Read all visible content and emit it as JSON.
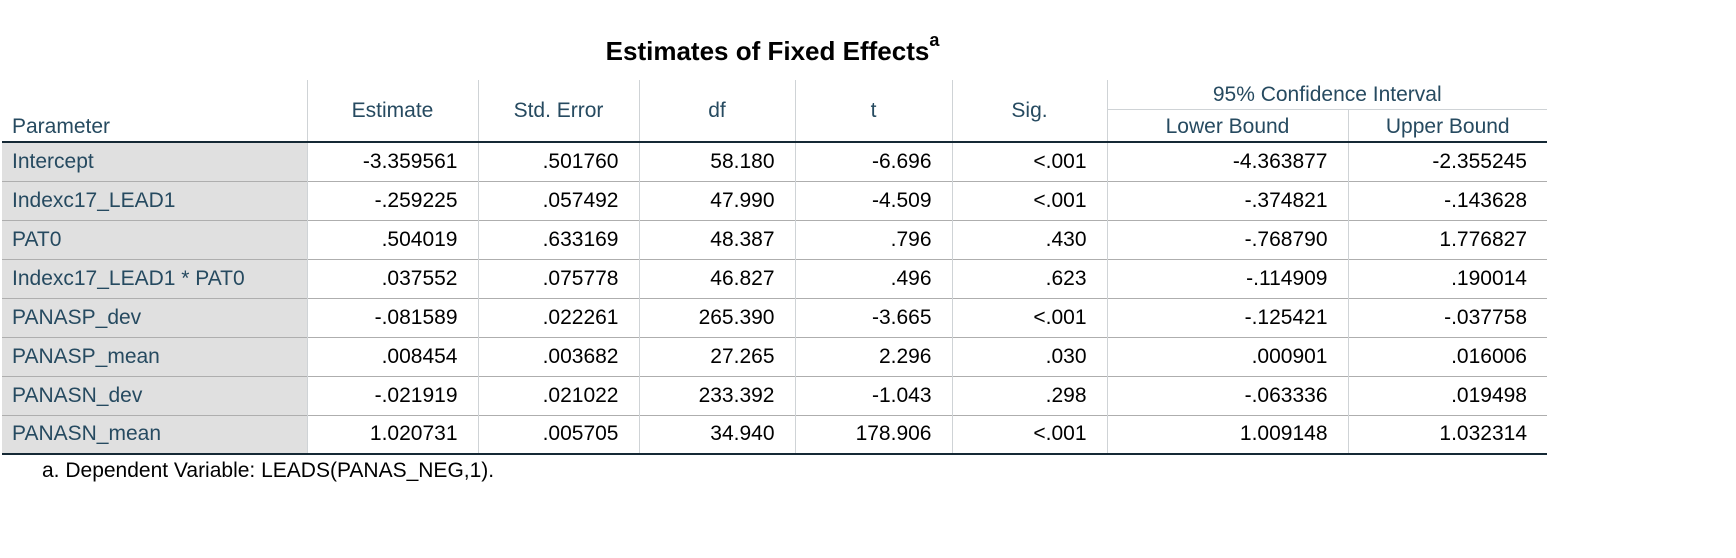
{
  "table": {
    "title": "Estimates of Fixed Effects",
    "title_superscript": "a",
    "headers": {
      "parameter": "Parameter",
      "estimate": "Estimate",
      "std_error": "Std. Error",
      "df": "df",
      "t": "t",
      "sig": "Sig.",
      "ci": "95% Confidence Interval",
      "lower": "Lower Bound",
      "upper": "Upper Bound"
    },
    "rows": [
      [
        "Intercept",
        "-3.359561",
        ".501760",
        "58.180",
        "-6.696",
        "<.001",
        "-4.363877",
        "-2.355245"
      ],
      [
        "Indexc17_LEAD1",
        "-.259225",
        ".057492",
        "47.990",
        "-4.509",
        "<.001",
        "-.374821",
        "-.143628"
      ],
      [
        "PAT0",
        ".504019",
        ".633169",
        "48.387",
        ".796",
        ".430",
        "-.768790",
        "1.776827"
      ],
      [
        "Indexc17_LEAD1 * PAT0",
        ".037552",
        ".075778",
        "46.827",
        ".496",
        ".623",
        "-.114909",
        ".190014"
      ],
      [
        "PANASP_dev",
        "-.081589",
        ".022261",
        "265.390",
        "-3.665",
        "<.001",
        "-.125421",
        "-.037758"
      ],
      [
        "PANASP_mean",
        ".008454",
        ".003682",
        "27.265",
        "2.296",
        ".030",
        ".000901",
        ".016006"
      ],
      [
        "PANASN_dev",
        "-.021919",
        ".021022",
        "233.392",
        "-1.043",
        ".298",
        "-.063336",
        ".019498"
      ],
      [
        "PANASN_mean",
        "1.020731",
        ".005705",
        "34.940",
        "178.906",
        "<.001",
        "1.009148",
        "1.032314"
      ]
    ],
    "footnote": "a. Dependent Variable: LEADS(PANAS_NEG,1)."
  },
  "colors": {
    "header_text": "#264a60",
    "label_background": "#e0e0e0",
    "rule_dark": "#152935"
  }
}
